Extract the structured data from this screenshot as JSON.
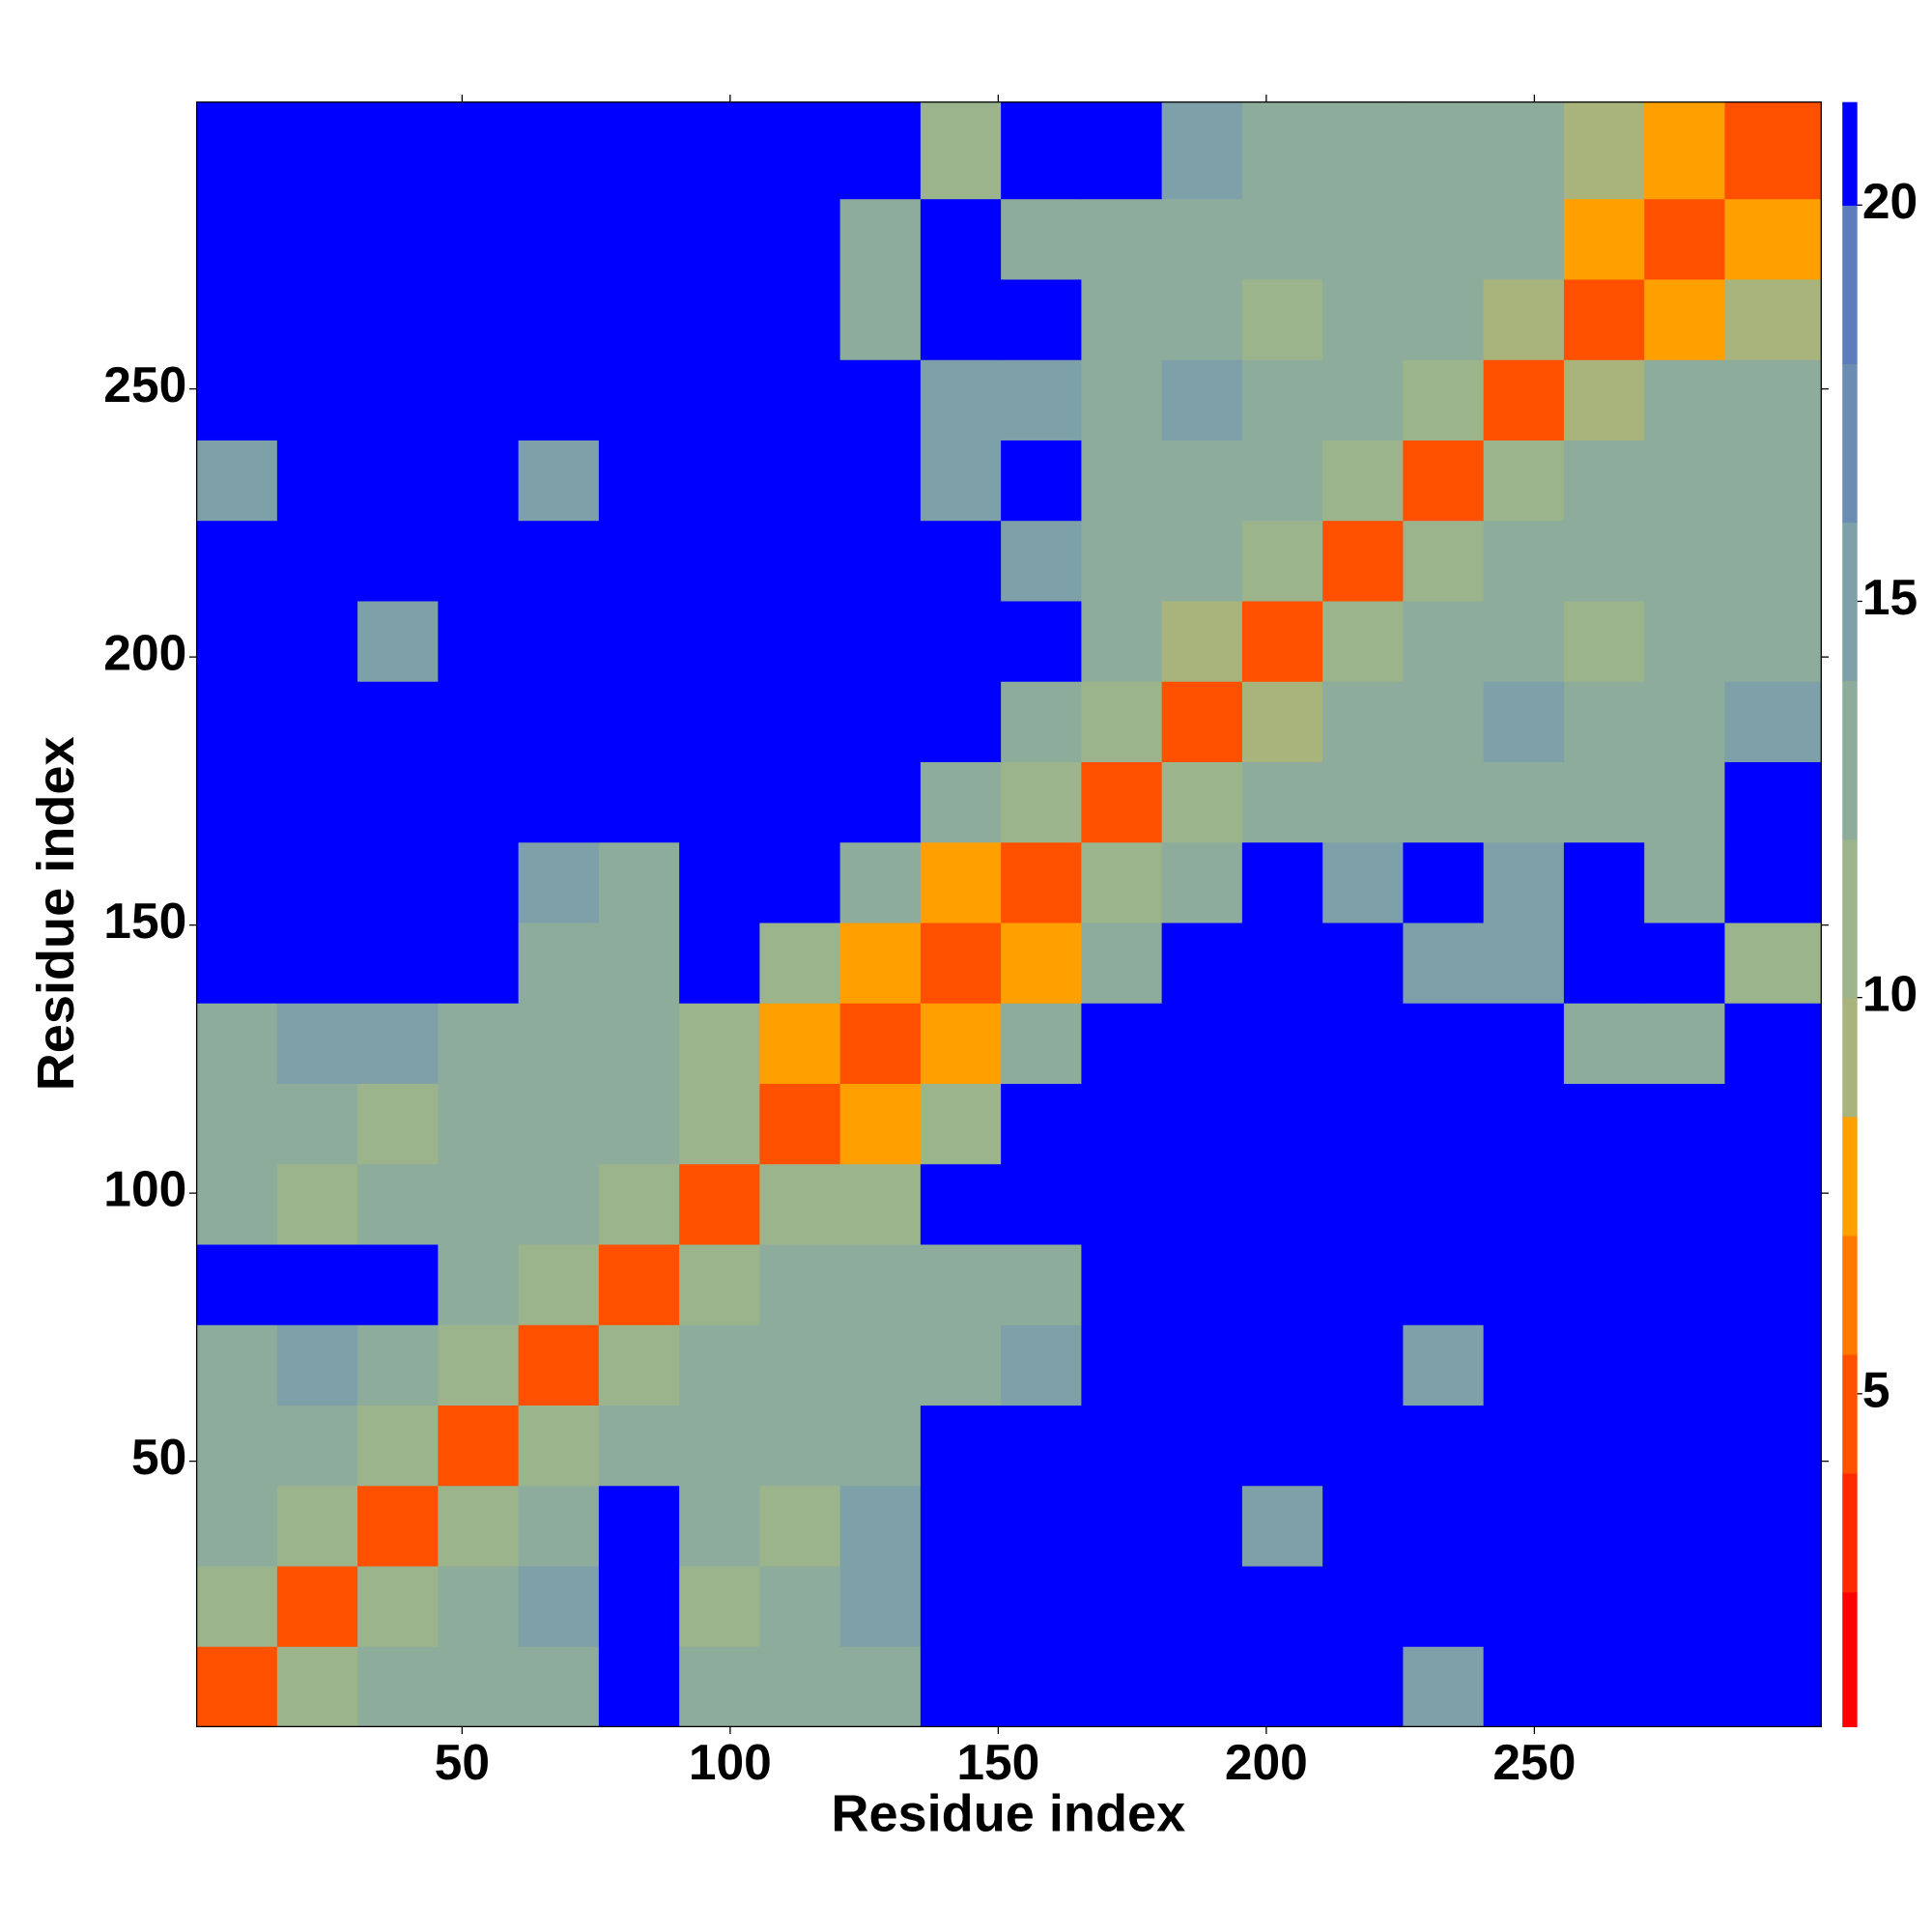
{
  "chart_data": {
    "type": "heatmap",
    "xlabel": "Residue index",
    "ylabel": "Residue index",
    "xbins": [
      0.5,
      15.5,
      30.5,
      45.5,
      60.5,
      75.5,
      90.5,
      105.5,
      120.5,
      135.5,
      150.5,
      165.5,
      180.5,
      195.5,
      210.5,
      225.5,
      240.5,
      255.5,
      270.5,
      285.5,
      303.5
    ],
    "ybins": [
      0.5,
      15.5,
      30.5,
      45.5,
      60.5,
      75.5,
      90.5,
      105.5,
      120.5,
      135.5,
      150.5,
      165.5,
      180.5,
      195.5,
      210.5,
      225.5,
      240.5,
      255.5,
      270.5,
      285.5,
      303.5
    ],
    "xlim": [
      0.5,
      303.5
    ],
    "ylim": [
      0.5,
      303.5
    ],
    "xticks": [
      50,
      100,
      150,
      200,
      250
    ],
    "yticks": [
      50,
      100,
      150,
      200,
      250
    ],
    "z": [
      [
        4,
        10,
        12,
        13,
        13,
        21,
        13,
        12,
        13,
        21,
        21,
        21,
        21,
        21,
        21,
        15,
        21,
        21,
        21,
        21
      ],
      [
        10,
        4,
        10,
        12,
        14,
        21,
        11,
        12,
        14,
        21,
        21,
        21,
        21,
        21,
        21,
        21,
        21,
        21,
        21,
        21
      ],
      [
        12,
        10,
        4,
        10,
        12,
        21,
        12,
        11,
        14,
        21,
        21,
        21,
        21,
        14,
        21,
        21,
        21,
        21,
        21,
        21
      ],
      [
        13,
        12,
        10,
        4,
        10,
        13,
        12,
        13,
        13,
        21,
        21,
        21,
        21,
        21,
        21,
        21,
        21,
        21,
        21,
        21
      ],
      [
        13,
        14,
        12,
        10,
        4,
        10,
        13,
        12,
        13,
        13,
        14,
        21,
        21,
        21,
        21,
        14,
        21,
        21,
        21,
        21
      ],
      [
        21,
        21,
        21,
        13,
        10,
        4,
        10,
        12,
        12,
        12,
        13,
        21,
        21,
        21,
        21,
        21,
        21,
        21,
        21,
        21
      ],
      [
        13,
        11,
        12,
        12,
        13,
        10,
        4,
        10,
        11,
        21,
        21,
        21,
        21,
        21,
        21,
        21,
        21,
        21,
        21,
        21
      ],
      [
        12,
        12,
        11,
        13,
        12,
        12,
        10,
        4,
        8,
        11,
        21,
        21,
        21,
        21,
        21,
        21,
        21,
        21,
        21,
        21
      ],
      [
        13,
        14,
        14,
        13,
        13,
        12,
        11,
        8,
        4,
        8,
        13,
        21,
        21,
        21,
        21,
        21,
        21,
        13,
        13,
        21
      ],
      [
        21,
        21,
        21,
        21,
        13,
        12,
        21,
        11,
        8,
        4,
        7,
        13,
        21,
        21,
        21,
        14,
        14,
        21,
        21,
        11
      ],
      [
        21,
        21,
        21,
        21,
        14,
        13,
        21,
        21,
        13,
        7,
        4,
        10,
        12,
        21,
        14,
        21,
        14,
        21,
        13,
        21
      ],
      [
        21,
        21,
        21,
        21,
        21,
        21,
        21,
        21,
        21,
        13,
        10,
        4,
        10,
        12,
        13,
        12,
        13,
        12,
        13,
        21
      ],
      [
        21,
        21,
        21,
        21,
        21,
        21,
        21,
        21,
        21,
        21,
        12,
        10,
        4,
        9,
        12,
        13,
        14,
        12,
        13,
        14
      ],
      [
        21,
        21,
        14,
        21,
        21,
        21,
        21,
        21,
        21,
        21,
        21,
        12,
        9,
        4,
        11,
        13,
        13,
        11,
        12,
        13
      ],
      [
        21,
        21,
        21,
        21,
        21,
        21,
        21,
        21,
        21,
        21,
        14,
        13,
        12,
        11,
        4,
        10,
        13,
        12,
        12,
        13
      ],
      [
        15,
        21,
        21,
        21,
        14,
        21,
        21,
        21,
        21,
        14,
        21,
        12,
        13,
        13,
        10,
        4,
        10,
        12,
        12,
        13
      ],
      [
        21,
        21,
        21,
        21,
        21,
        21,
        21,
        21,
        21,
        14,
        14,
        13,
        14,
        13,
        13,
        10,
        4,
        9,
        12,
        13
      ],
      [
        21,
        21,
        21,
        21,
        21,
        21,
        21,
        21,
        13,
        21,
        21,
        12,
        12,
        11,
        12,
        12,
        9,
        4,
        7,
        9
      ],
      [
        21,
        21,
        21,
        21,
        21,
        21,
        21,
        21,
        13,
        21,
        13,
        13,
        13,
        12,
        12,
        12,
        12,
        7,
        4,
        7
      ],
      [
        21,
        21,
        21,
        21,
        21,
        21,
        21,
        21,
        21,
        11,
        21,
        21,
        14,
        13,
        13,
        13,
        13,
        9,
        7,
        4
      ]
    ],
    "clim": [
      0.8,
      21.3
    ],
    "cticks": [
      5,
      10,
      15,
      20
    ],
    "levels": [
      0.8,
      2.5,
      4,
      5.5,
      7,
      8.5,
      10,
      12,
      14,
      16,
      18,
      20,
      21.3
    ],
    "level_colors": [
      "#ff0000",
      "#ff2a00",
      "#ff5000",
      "#ff7800",
      "#ffa000",
      "#a8b47c",
      "#9cb48c",
      "#8eac9c",
      "#7ea0a8",
      "#6c8cb4",
      "#5c7cbc",
      "#0000ff"
    ]
  }
}
